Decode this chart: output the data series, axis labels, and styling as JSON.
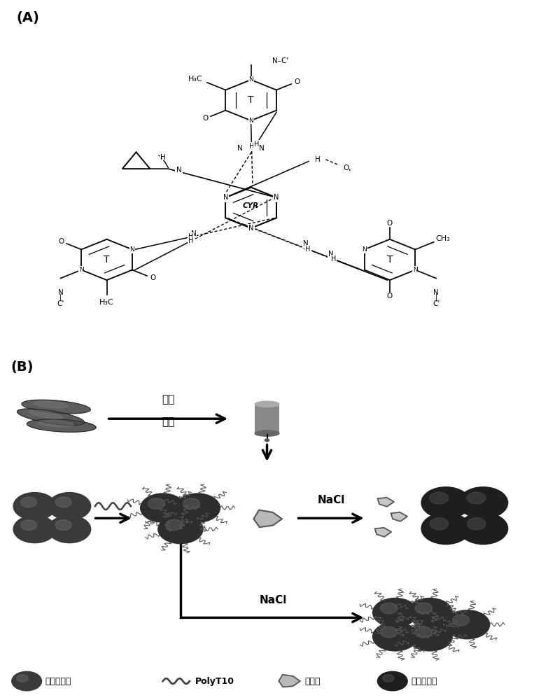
{
  "title_A": "(A)",
  "title_B": "(B)",
  "bg_color": "#ffffff",
  "nacl_label": "NaCl",
  "slurry_label1": "匀浆",
  "slurry_label2": "过滤",
  "legend_label1": "分散纳米金",
  "legend_label2": "PolyT10",
  "legend_label3": "灰蝇胺",
  "legend_label4": "团紧纳米金"
}
